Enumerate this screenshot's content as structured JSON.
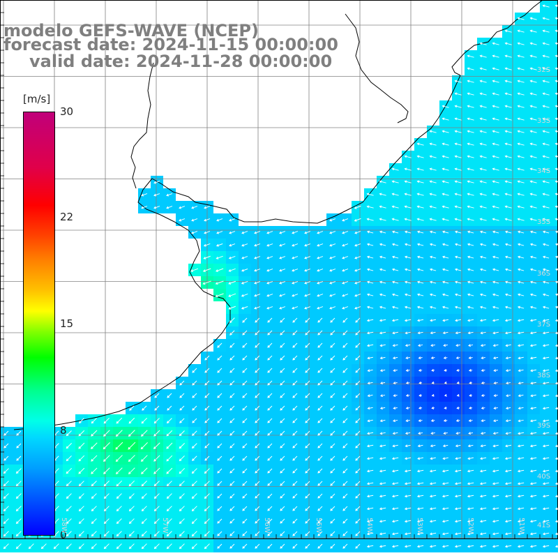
{
  "title": {
    "model": "modelo GEFS-WAVE (NCEP)",
    "forecast": "forecast date: 2024-11-15 00:00:00",
    "valid": "valid date: 2024-11-28 00:00:00"
  },
  "colorbar": {
    "units": "[m/s]",
    "min": 0,
    "max": 30,
    "ticks": [
      {
        "value": 30,
        "label": "30"
      },
      {
        "value": 22,
        "label": "22"
      },
      {
        "value": 15,
        "label": "15"
      },
      {
        "value": 8,
        "label": "8"
      },
      {
        "value": 0,
        "label": "0"
      }
    ],
    "colors": [
      "#0000ff",
      "#00d8ff",
      "#00ff00",
      "#ffff00",
      "#ff8000",
      "#ff0000",
      "#c0007a"
    ]
  },
  "map": {
    "grid": true,
    "grid_color": "#808080",
    "coast_color": "#000000",
    "vector_color": "#ffffff",
    "lat_labels": [
      "32S",
      "33S",
      "34S",
      "35S",
      "36S",
      "37S",
      "38S",
      "39S",
      "40S",
      "41S"
    ],
    "lon_labels": [
      "58W",
      "57W",
      "56W",
      "55W",
      "54W",
      "53W",
      "52W",
      "51W"
    ]
  }
}
